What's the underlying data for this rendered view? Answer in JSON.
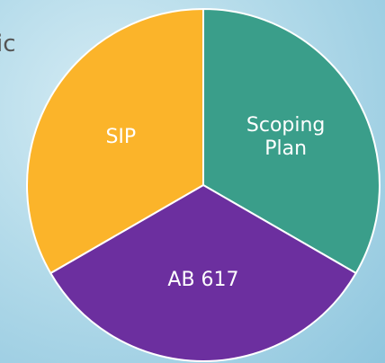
{
  "chart_data": {
    "type": "pie",
    "annotation": "ic",
    "categories": [
      "Scoping Plan",
      "AB 617",
      "SIP"
    ],
    "values": [
      33.3,
      33.3,
      33.3
    ],
    "colors": [
      "#3a9e8a",
      "#6c2f9f",
      "#fbb42a"
    ]
  }
}
